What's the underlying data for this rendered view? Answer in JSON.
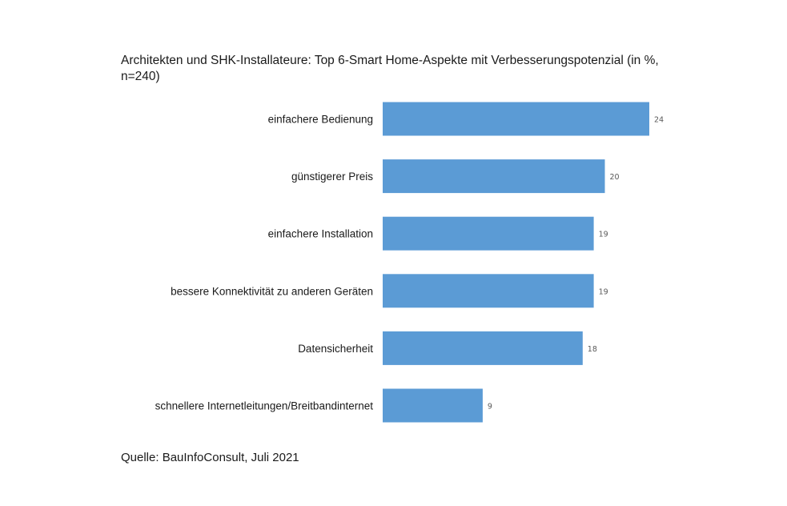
{
  "chart_data": {
    "type": "bar",
    "orientation": "horizontal",
    "title": "Architekten und SHK-Installateure: Top 6-Smart Home-Aspekte mit Verbesserungspotenzial (in %, n=240)",
    "categories": [
      "einfachere Bedienung",
      "günstigerer Preis",
      "einfachere Installation",
      "bessere Konnektivität zu anderen Geräten",
      "Datensicherheit",
      "schnellere Internetleitungen/Breitbandinternet"
    ],
    "values": [
      24,
      20,
      19,
      19,
      18,
      9
    ],
    "xlim": [
      0,
      24
    ],
    "grid": false,
    "legend": "none",
    "bar_color": "#5b9bd5",
    "value_label_color": "#595959"
  },
  "source": "Quelle: BauInfoConsult, Juli 2021"
}
